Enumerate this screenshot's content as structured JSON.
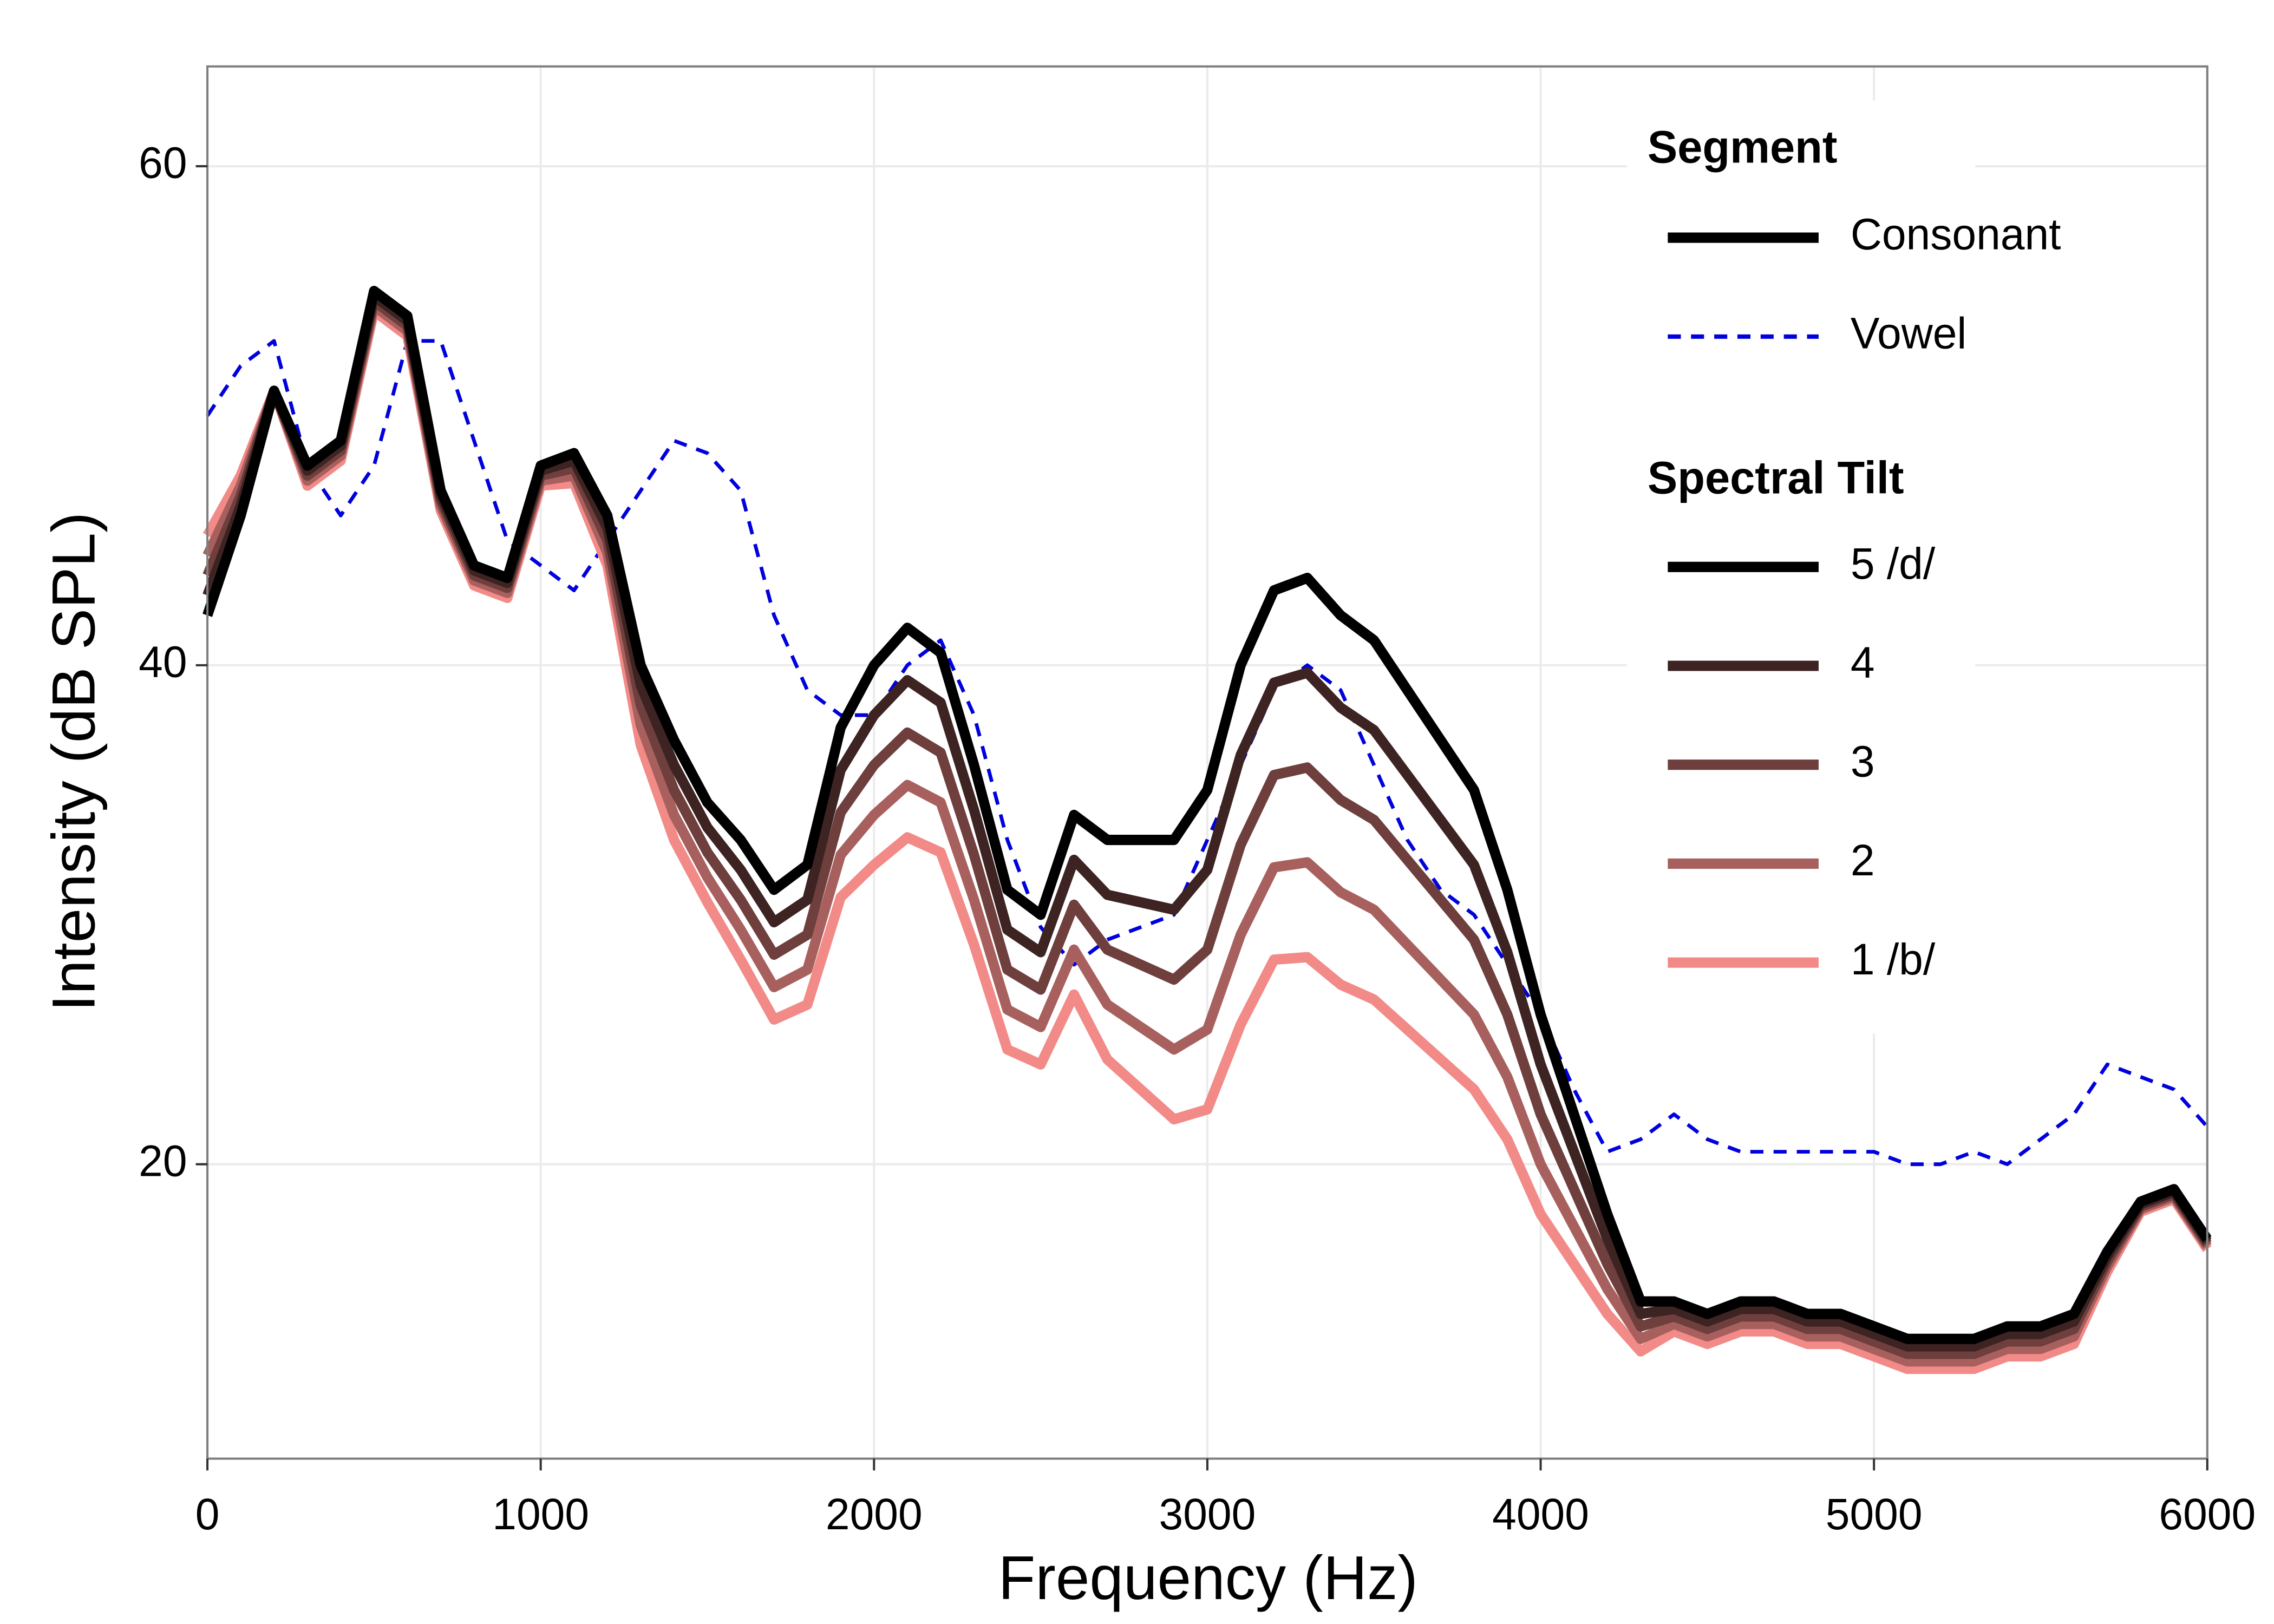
{
  "chart_data": {
    "type": "line",
    "x_label": "Frequency (Hz)",
    "y_label": "Intensity (dB SPL)",
    "xlim": [
      0,
      6000
    ],
    "ylim": [
      8.2,
      64
    ],
    "xticks": [
      0,
      1000,
      2000,
      3000,
      4000,
      5000,
      6000
    ],
    "yticks": [
      20,
      40,
      60
    ],
    "grid": true,
    "legend": "top-right",
    "segment_legend": {
      "title": "Segment",
      "consonant": "Consonant"
    },
    "tilt_legend_title": "Spectral Tilt",
    "x": [
      0,
      100,
      200,
      300,
      400,
      500,
      600,
      700,
      800,
      900,
      1000,
      1100,
      1200,
      1300,
      1400,
      1500,
      1600,
      1700,
      1800,
      1900,
      2000,
      2100,
      2200,
      2300,
      2400,
      2500,
      2600,
      2700,
      2800,
      2900,
      3000,
      3100,
      3200,
      3300,
      3400,
      3500,
      3600,
      3700,
      3800,
      3900,
      4000,
      4100,
      4200,
      4300,
      4400,
      4500,
      4600,
      4700,
      4800,
      4900,
      5000,
      5100,
      5200,
      5300,
      5400,
      5500,
      5600,
      5700,
      5800,
      5900,
      6000
    ],
    "series": [
      {
        "name": "Vowel",
        "color": "#0000dd",
        "dash": "dashed",
        "values": [
          50,
          52,
          53,
          48,
          46,
          48,
          53,
          53,
          49,
          45,
          44,
          43,
          45,
          47,
          49,
          48.5,
          47,
          42,
          39,
          38,
          38,
          40,
          41,
          38,
          33,
          29.5,
          28,
          29,
          29.5,
          30,
          33,
          36,
          39,
          40,
          39,
          36,
          33,
          31,
          30,
          28,
          26,
          23,
          20.5,
          21,
          22,
          21,
          20.5,
          20.5,
          20.5,
          20.5,
          20.5,
          20,
          20,
          20.5,
          20,
          21,
          22,
          24,
          23.5,
          23,
          21.5
        ]
      },
      {
        "name": "1 /b/",
        "color": "#f28a88",
        "dash": "solid",
        "values": [
          45.2,
          47.6,
          51,
          47.2,
          48.2,
          54.2,
          53.2,
          46.2,
          43.2,
          42.7,
          47.2,
          47.3,
          44,
          36.8,
          33,
          30.5,
          28.2,
          25.8,
          26.4,
          30.7,
          32,
          33.1,
          32.5,
          28.8,
          24.6,
          24,
          26.8,
          24.2,
          23,
          21.8,
          22.2,
          25.6,
          28.2,
          28.3,
          27.2,
          26.6,
          25.4,
          24.2,
          23,
          21,
          18,
          16,
          14,
          12.5,
          13.3,
          12.8,
          13.3,
          13.3,
          12.8,
          12.8,
          12.3,
          11.8,
          11.8,
          11.8,
          12.3,
          12.3,
          12.8,
          15.7,
          18.1,
          18.6,
          16.6
        ]
      },
      {
        "name": "2",
        "color": "#a8605e",
        "dash": "solid",
        "values": [
          44.4,
          47.2,
          51,
          47.4,
          48.4,
          54.4,
          53.4,
          46.4,
          43.4,
          42.9,
          47.4,
          47.6,
          44.5,
          37.6,
          34,
          31.5,
          29.4,
          27.1,
          27.8,
          32.4,
          34,
          35.2,
          34.5,
          30.6,
          26.2,
          25.5,
          28.6,
          26.4,
          25.5,
          24.6,
          25.4,
          29.2,
          31.9,
          32.1,
          30.9,
          30.2,
          28.8,
          27.4,
          26,
          23.5,
          20,
          17.5,
          15,
          13,
          13.6,
          13.1,
          13.6,
          13.6,
          13.1,
          13.1,
          12.6,
          12.1,
          12.1,
          12.1,
          12.6,
          12.6,
          13.1,
          15.9,
          18.2,
          18.7,
          16.7
        ]
      },
      {
        "name": "3",
        "color": "#6e3f3d",
        "dash": "solid",
        "values": [
          43.6,
          46.8,
          51,
          47.6,
          48.6,
          54.6,
          53.6,
          46.6,
          43.6,
          43.1,
          47.6,
          47.9,
          45,
          38.4,
          35,
          32.5,
          30.6,
          28.4,
          29.2,
          34.1,
          36,
          37.3,
          36.5,
          32.4,
          27.8,
          27,
          30.4,
          28.6,
          28,
          27.4,
          28.6,
          32.8,
          35.6,
          35.9,
          34.6,
          33.8,
          32.2,
          30.6,
          29,
          26,
          22,
          19,
          16,
          13.5,
          13.9,
          13.4,
          13.9,
          13.9,
          13.4,
          13.4,
          12.9,
          12.4,
          12.4,
          12.4,
          12.9,
          12.9,
          13.4,
          16.1,
          18.3,
          18.8,
          16.8
        ]
      },
      {
        "name": "4",
        "color": "#3d2322",
        "dash": "solid",
        "values": [
          42.8,
          46.4,
          51,
          47.8,
          48.8,
          54.8,
          53.8,
          46.8,
          43.8,
          43.3,
          47.8,
          48.2,
          45.5,
          39.2,
          36,
          33.5,
          31.8,
          29.7,
          30.6,
          35.8,
          38,
          39.4,
          38.5,
          34.2,
          29.4,
          28.5,
          32.2,
          30.8,
          30.5,
          30.2,
          31.8,
          36.4,
          39.3,
          39.7,
          38.3,
          37.4,
          35.6,
          33.8,
          32,
          28.5,
          24,
          20.5,
          17,
          14,
          14.2,
          13.7,
          14.2,
          14.2,
          13.7,
          13.7,
          13.2,
          12.7,
          12.7,
          12.7,
          13.2,
          13.2,
          13.7,
          16.3,
          18.4,
          18.9,
          16.9
        ]
      },
      {
        "name": "5 /d/",
        "color": "#000000",
        "dash": "solid",
        "values": [
          42,
          46,
          51,
          48,
          49,
          55,
          54,
          47,
          44,
          43.5,
          48,
          48.5,
          46,
          40,
          37,
          34.5,
          33,
          31,
          32,
          37.5,
          40,
          41.5,
          40.5,
          36,
          31,
          30,
          34,
          33,
          33,
          33,
          35,
          40,
          43,
          43.5,
          42,
          41,
          39,
          37,
          35,
          31,
          26,
          22,
          18,
          14.5,
          14.5,
          14,
          14.5,
          14.5,
          14,
          14,
          13.5,
          13,
          13,
          13,
          13.5,
          13.5,
          14,
          16.5,
          18.5,
          19,
          17
        ]
      }
    ]
  }
}
